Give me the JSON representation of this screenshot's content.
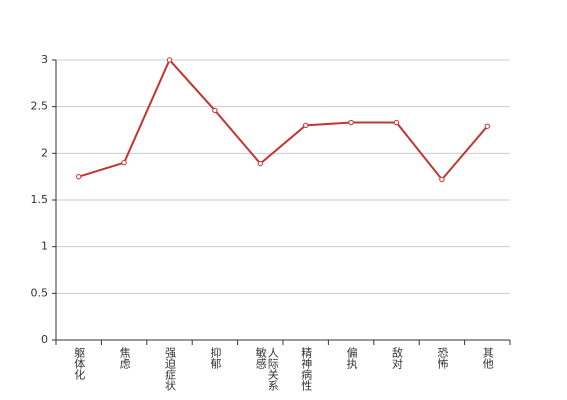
{
  "chart_data": {
    "type": "line",
    "categories": [
      "躯体化",
      "焦虑",
      "强迫症状",
      "抑郁",
      "人际关系敏感",
      "精神病性",
      "偏执",
      "敌对",
      "恐怖",
      "其他"
    ],
    "series": [
      {
        "color": "#c23531",
        "values": [
          1.75,
          1.9,
          3.0,
          2.46,
          1.89,
          2.3,
          2.33,
          2.33,
          1.72,
          2.29
        ]
      }
    ],
    "ylim": [
      0,
      3
    ],
    "yticks": [
      0,
      0.5,
      1,
      1.5,
      2,
      2.5,
      3
    ],
    "grid": true
  }
}
